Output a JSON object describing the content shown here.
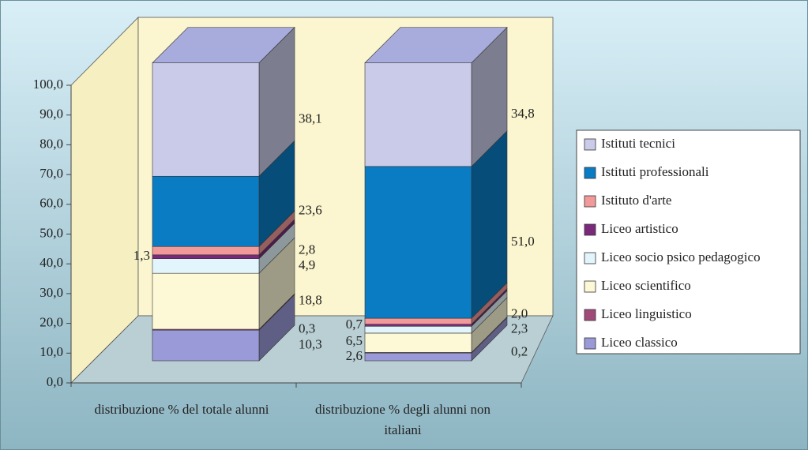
{
  "chart_data": {
    "type": "bar",
    "stacked": true,
    "categories": [
      "distribuzione % del totale alunni",
      "distribuzione % degli alunni non italiani"
    ],
    "series": [
      {
        "name": "Liceo classico",
        "color": "#9a9ad8",
        "values": [
          10.3,
          2.6
        ],
        "value_labels": [
          "10,3",
          "2,6"
        ]
      },
      {
        "name": "Liceo linguistico",
        "color": "#a04a7a",
        "values": [
          0.3,
          0.2
        ],
        "value_labels": [
          "0,3",
          "0,2"
        ]
      },
      {
        "name": "Liceo scientifico",
        "color": "#fdf8d6",
        "values": [
          18.8,
          6.5
        ],
        "value_labels": [
          "18,8",
          "6,5"
        ]
      },
      {
        "name": "Liceo socio psico pedagogico",
        "color": "#e2f5fc",
        "values": [
          4.9,
          2.3
        ],
        "value_labels": [
          "4,9",
          "2,3"
        ]
      },
      {
        "name": "Liceo artistico",
        "color": "#7b2a7b",
        "values": [
          1.3,
          0.7
        ],
        "value_labels": [
          "1,3",
          "0,7"
        ]
      },
      {
        "name": "Istituto d'arte",
        "color": "#f29a9a",
        "values": [
          2.8,
          2.0
        ],
        "value_labels": [
          "2,8",
          "2,0"
        ]
      },
      {
        "name": "Istituti professionali",
        "color": "#0a7cc4",
        "values": [
          23.6,
          51.0
        ],
        "value_labels": [
          "23,6",
          "51,0"
        ]
      },
      {
        "name": "Istituti tecnici",
        "color": "#cacae9",
        "values": [
          38.1,
          34.8
        ],
        "value_labels": [
          "38,1",
          "34,8"
        ]
      }
    ],
    "ylim": [
      0,
      100
    ],
    "yticks": [
      {
        "value": 0,
        "label": "0,0"
      },
      {
        "value": 10,
        "label": "10,0"
      },
      {
        "value": 20,
        "label": "20,0"
      },
      {
        "value": 30,
        "label": "30,0"
      },
      {
        "value": 40,
        "label": "40,0"
      },
      {
        "value": 50,
        "label": "50,0"
      },
      {
        "value": 60,
        "label": "60,0"
      },
      {
        "value": 70,
        "label": "70,0"
      },
      {
        "value": 80,
        "label": "80,0"
      },
      {
        "value": 90,
        "label": "90,0"
      },
      {
        "value": 100,
        "label": "100,0"
      }
    ],
    "grid": false,
    "legend": "right"
  }
}
